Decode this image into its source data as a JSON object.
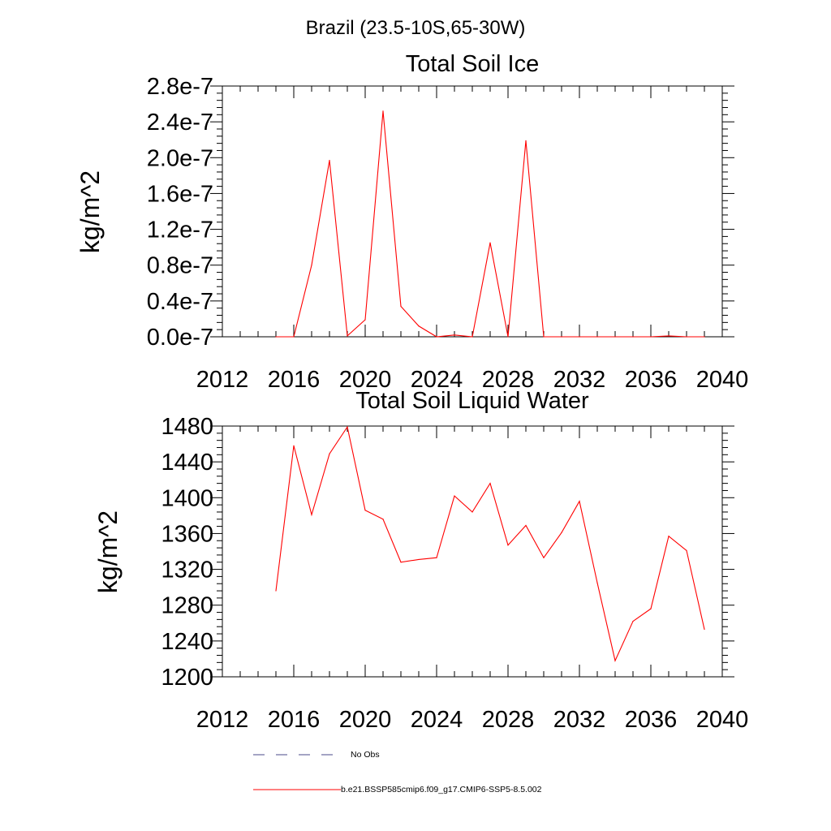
{
  "suptitle": "Brazil (23.5-10S,65-30W)",
  "legend": {
    "obs_label": "No Obs",
    "model_label": "b.e21.BSSP585cmip6.f09_g17.CMIP6-SSP5-8.5.002",
    "obs_color": "#4a4a8a",
    "model_color": "#ff0000"
  },
  "chart_data": [
    {
      "type": "line",
      "title": "Total Soil Ice",
      "ylabel": "kg/m^2",
      "xlim": [
        2012,
        2040
      ],
      "ylim": [
        0.0,
        2.8e-07
      ],
      "xticks": [
        2012,
        2016,
        2020,
        2024,
        2028,
        2032,
        2036,
        2040
      ],
      "xticklabels": [
        "2012",
        "2016",
        "2020",
        "2024",
        "2028",
        "2032",
        "2036",
        "2040"
      ],
      "yticks": [
        0.0,
        4e-08,
        8e-08,
        1.2e-07,
        1.6e-07,
        2e-07,
        2.4e-07,
        2.8e-07
      ],
      "yticklabels": [
        "0.0e-7",
        "0.4e-7",
        "0.8e-7",
        "1.2e-7",
        "1.6e-7",
        "2.0e-7",
        "2.4e-7",
        "2.8e-7"
      ],
      "grid": false,
      "series": [
        {
          "name": "b.e21.BSSP585cmip6.f09_g17.CMIP6-SSP5-8.5.002",
          "color": "#ff0000",
          "x": [
            2015,
            2016,
            2017,
            2018,
            2019,
            2020,
            2021,
            2022,
            2023,
            2024,
            2025,
            2026,
            2027,
            2028,
            2029,
            2030,
            2031,
            2032,
            2033,
            2034,
            2035,
            2036,
            2037,
            2038,
            2039
          ],
          "y": [
            0.0,
            0.0,
            8e-08,
            1.97e-07,
            1e-09,
            1.9e-08,
            2.52e-07,
            3.4e-08,
            1.2e-08,
            0.0,
            2e-09,
            0.0,
            1.05e-07,
            0.0,
            2.19e-07,
            0.0,
            0.0,
            0.0,
            0.0,
            0.0,
            0.0,
            0.0,
            1e-09,
            0.0,
            0.0
          ]
        }
      ]
    },
    {
      "type": "line",
      "title": "Total Soil Liquid Water",
      "ylabel": "kg/m^2",
      "xlim": [
        2012,
        2040
      ],
      "ylim": [
        1200,
        1480
      ],
      "xticks": [
        2012,
        2016,
        2020,
        2024,
        2028,
        2032,
        2036,
        2040
      ],
      "xticklabels": [
        "2012",
        "2016",
        "2020",
        "2024",
        "2028",
        "2032",
        "2036",
        "2040"
      ],
      "yticks": [
        1200,
        1240,
        1280,
        1320,
        1360,
        1400,
        1440,
        1480
      ],
      "yticklabels": [
        "1200",
        "1240",
        "1280",
        "1320",
        "1360",
        "1400",
        "1440",
        "1480"
      ],
      "grid": false,
      "series": [
        {
          "name": "b.e21.BSSP585cmip6.f09_g17.CMIP6-SSP5-8.5.002",
          "color": "#ff0000",
          "x": [
            2015,
            2016,
            2017,
            2018,
            2019,
            2020,
            2021,
            2022,
            2023,
            2024,
            2025,
            2026,
            2027,
            2028,
            2029,
            2030,
            2031,
            2032,
            2033,
            2034,
            2035,
            2036,
            2037,
            2038,
            2039
          ],
          "y": [
            1296,
            1458,
            1381,
            1449,
            1479,
            1386,
            1376,
            1328,
            1331,
            1333,
            1402,
            1384,
            1416,
            1347,
            1369,
            1333,
            1361,
            1396,
            1305,
            1218,
            1262,
            1276,
            1357,
            1341,
            1253
          ]
        }
      ]
    }
  ]
}
